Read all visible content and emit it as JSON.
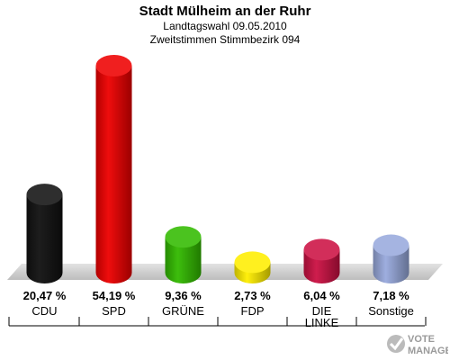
{
  "header": {
    "title": "Stadt Mülheim an der Ruhr",
    "subtitle1": "Landtagswahl 09.05.2010",
    "subtitle2": "Zweitstimmen Stimmbezirk 094"
  },
  "logo": {
    "line1": "VOTE",
    "line2": "MANAGER",
    "icon": "vote-manager-logo-icon"
  },
  "chart_data": {
    "type": "bar",
    "style": "3d-cylinder",
    "categories": [
      "CDU",
      "SPD",
      "GRÜNE",
      "FDP",
      "DIE LINKE",
      "Sonstige"
    ],
    "values": [
      20.47,
      54.19,
      9.36,
      2.73,
      6.04,
      7.18
    ],
    "value_labels": [
      "20,47 %",
      "54,19 %",
      "9,36 %",
      "2,73 %",
      "6,04 %",
      "7,18 %"
    ],
    "colors": [
      "#111111",
      "#ee0000",
      "#33bb00",
      "#ffee00",
      "#cc1144",
      "#99aadd"
    ],
    "ylim": [
      0,
      54.19
    ],
    "grid": false,
    "legend": "none"
  }
}
